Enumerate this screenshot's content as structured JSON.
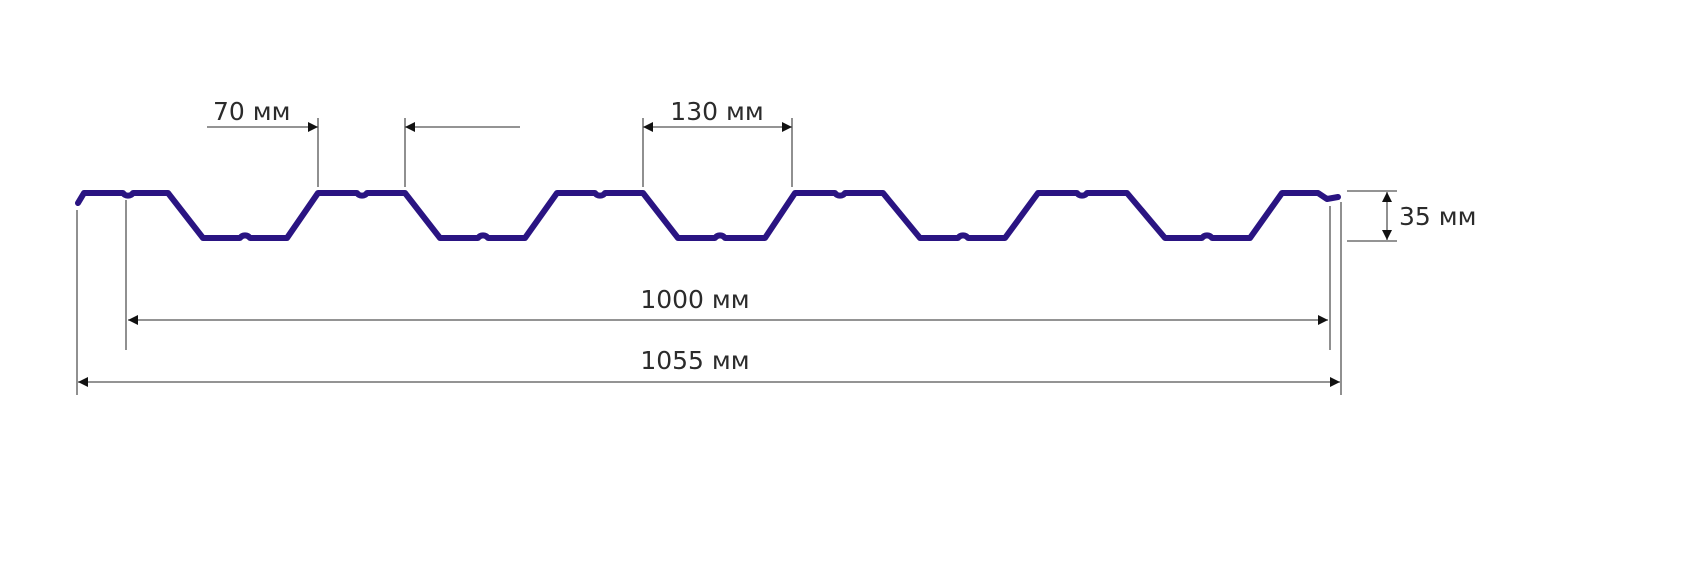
{
  "diagram": {
    "labels": {
      "rib_top_width": "70 мм",
      "rib_pitch": "130 мм",
      "profile_height": "35 мм",
      "useful_width": "1000 мм",
      "total_width": "1055 мм"
    },
    "colors": {
      "profile": "#2a1482",
      "dimension_lines": "#555555"
    }
  }
}
